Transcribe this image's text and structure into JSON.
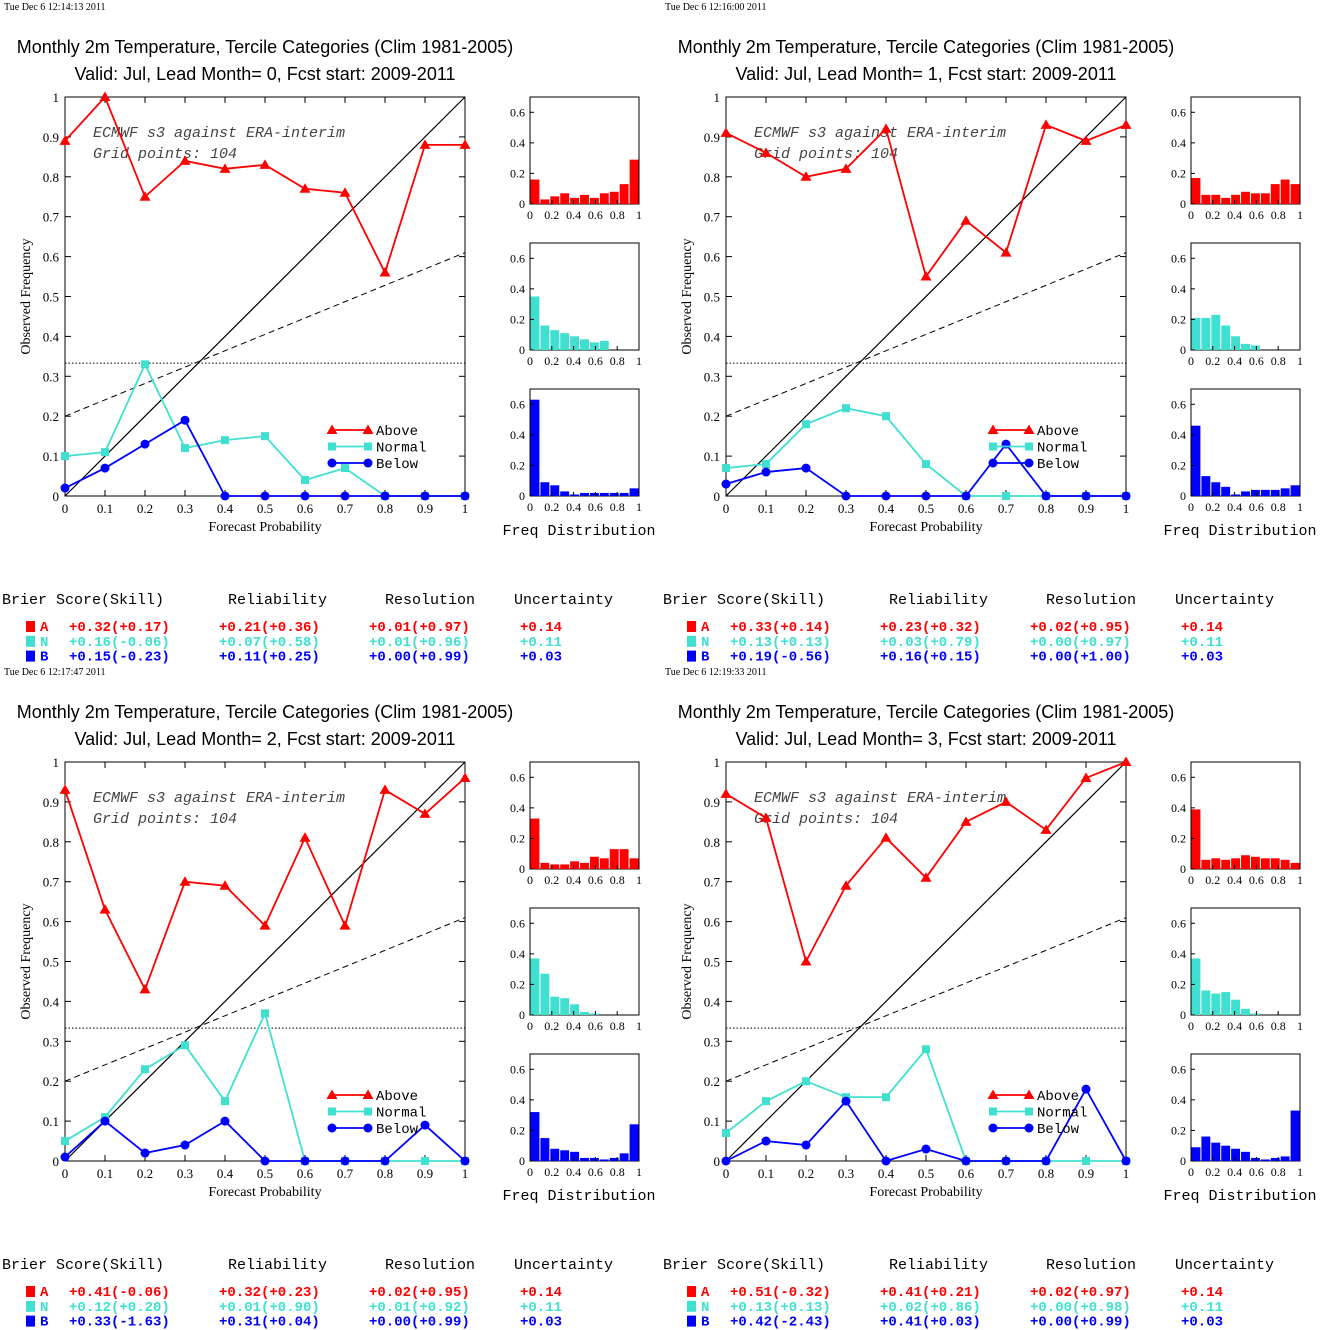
{
  "colors": {
    "above": "#ff0000",
    "normal": "#40e0d0",
    "below": "#0000ff",
    "axis": "#000000"
  },
  "score_headers": [
    "Brier Score(Skill)",
    "Reliability",
    "Resolution",
    "Uncertainty"
  ],
  "legend_labels": [
    "Above",
    "Normal",
    "Below"
  ],
  "legend_codes": [
    "A",
    "N",
    "B"
  ],
  "chart_data": [
    {
      "type": "line",
      "timestamp": "Tue Dec  6 12:14:13 2011",
      "title": "Monthly 2m Temperature, Tercile Categories (Clim 1981-2005)",
      "subtitle": "Valid: Jul, Lead Month= 0, Fcst start: 2009-2011",
      "annotation": [
        "ECMWF s3 against ERA-interim",
        "Grid points:  104"
      ],
      "xlabel": "Forecast Probability",
      "ylabel": "Observed Frequency",
      "hist_xlabel": "Freq Distribution",
      "xlim": [
        0,
        1
      ],
      "ylim": [
        0,
        1
      ],
      "x": [
        0,
        0.1,
        0.2,
        0.3,
        0.4,
        0.5,
        0.6,
        0.7,
        0.8,
        0.9,
        1.0
      ],
      "series": [
        {
          "name": "Above",
          "values": [
            0.89,
            1.0,
            0.75,
            0.84,
            0.82,
            0.83,
            0.77,
            0.76,
            0.56,
            0.88,
            0.88
          ]
        },
        {
          "name": "Normal",
          "values": [
            0.1,
            0.11,
            0.33,
            0.12,
            0.14,
            0.15,
            0.04,
            0.07,
            0,
            0,
            0
          ]
        },
        {
          "name": "Below",
          "values": [
            0.02,
            0.07,
            0.13,
            0.19,
            0,
            0,
            0,
            0,
            0,
            0,
            0
          ]
        }
      ],
      "histograms": [
        {
          "name": "Above",
          "values": [
            0.16,
            0.03,
            0.05,
            0.07,
            0.04,
            0.06,
            0.04,
            0.07,
            0.08,
            0.13,
            0.29
          ]
        },
        {
          "name": "Normal",
          "values": [
            0.35,
            0.16,
            0.13,
            0.11,
            0.09,
            0.07,
            0.05,
            0.06,
            0,
            0,
            0
          ]
        },
        {
          "name": "Below",
          "values": [
            0.63,
            0.09,
            0.07,
            0.03,
            0.01,
            0.02,
            0.02,
            0.02,
            0.02,
            0.02,
            0.05
          ]
        }
      ],
      "scores": [
        {
          "bs": "+0.32(+0.17)",
          "rel": "+0.21(+0.36)",
          "res": "+0.01(+0.97)",
          "unc": "+0.14"
        },
        {
          "bs": "+0.16(-0.06)",
          "rel": "+0.07(+0.58)",
          "res": "+0.01(+0.96)",
          "unc": "+0.11"
        },
        {
          "bs": "+0.15(-0.23)",
          "rel": "+0.11(+0.25)",
          "res": "+0.00(+0.99)",
          "unc": "+0.03"
        }
      ]
    },
    {
      "type": "line",
      "timestamp": "Tue Dec  6 12:16:00 2011",
      "title": "Monthly 2m Temperature, Tercile Categories (Clim 1981-2005)",
      "subtitle": "Valid: Jul, Lead Month= 1, Fcst start: 2009-2011",
      "annotation": [
        "ECMWF s3 against ERA-interim",
        "Grid points:  104"
      ],
      "xlabel": "Forecast Probability",
      "ylabel": "Observed Frequency",
      "hist_xlabel": "Freq Distribution",
      "xlim": [
        0,
        1
      ],
      "ylim": [
        0,
        1
      ],
      "x": [
        0,
        0.1,
        0.2,
        0.3,
        0.4,
        0.5,
        0.6,
        0.7,
        0.8,
        0.9,
        1.0
      ],
      "series": [
        {
          "name": "Above",
          "values": [
            0.91,
            0.86,
            0.8,
            0.82,
            0.92,
            0.55,
            0.69,
            0.61,
            0.93,
            0.89,
            0.93
          ]
        },
        {
          "name": "Normal",
          "values": [
            0.07,
            0.08,
            0.18,
            0.22,
            0.2,
            0.08,
            0,
            0,
            0,
            0,
            0
          ]
        },
        {
          "name": "Below",
          "values": [
            0.03,
            0.06,
            0.07,
            0,
            0,
            0,
            0,
            0.13,
            0,
            0,
            0
          ]
        }
      ],
      "histograms": [
        {
          "name": "Above",
          "values": [
            0.17,
            0.06,
            0.06,
            0.04,
            0.06,
            0.08,
            0.07,
            0.07,
            0.13,
            0.16,
            0.13
          ]
        },
        {
          "name": "Normal",
          "values": [
            0.21,
            0.21,
            0.23,
            0.16,
            0.09,
            0.04,
            0.03,
            0,
            0,
            0,
            0
          ]
        },
        {
          "name": "Below",
          "values": [
            0.46,
            0.13,
            0.09,
            0.06,
            0.01,
            0.03,
            0.04,
            0.04,
            0.04,
            0.05,
            0.07
          ]
        }
      ],
      "scores": [
        {
          "bs": "+0.33(+0.14)",
          "rel": "+0.23(+0.32)",
          "res": "+0.02(+0.95)",
          "unc": "+0.14"
        },
        {
          "bs": "+0.13(+0.13)",
          "rel": "+0.03(+0.79)",
          "res": "+0.00(+0.97)",
          "unc": "+0.11"
        },
        {
          "bs": "+0.19(-0.56)",
          "rel": "+0.16(+0.15)",
          "res": "+0.00(+1.00)",
          "unc": "+0.03"
        }
      ]
    },
    {
      "type": "line",
      "timestamp": "Tue Dec  6 12:17:47 2011",
      "title": "Monthly 2m Temperature, Tercile Categories (Clim 1981-2005)",
      "subtitle": "Valid: Jul, Lead Month= 2, Fcst start: 2009-2011",
      "annotation": [
        "ECMWF s3 against ERA-interim",
        "Grid points:  104"
      ],
      "xlabel": "Forecast Probability",
      "ylabel": "Observed Frequency",
      "hist_xlabel": "Freq Distribution",
      "xlim": [
        0,
        1
      ],
      "ylim": [
        0,
        1
      ],
      "x": [
        0,
        0.1,
        0.2,
        0.3,
        0.4,
        0.5,
        0.6,
        0.7,
        0.8,
        0.9,
        1.0
      ],
      "series": [
        {
          "name": "Above",
          "values": [
            0.93,
            0.63,
            0.43,
            0.7,
            0.69,
            0.59,
            0.81,
            0.59,
            0.93,
            0.87,
            0.96
          ]
        },
        {
          "name": "Normal",
          "values": [
            0.05,
            0.11,
            0.23,
            0.29,
            0.15,
            0.37,
            0,
            0,
            0,
            0,
            0
          ]
        },
        {
          "name": "Below",
          "values": [
            0.01,
            0.1,
            0.02,
            0.04,
            0.1,
            0,
            0,
            0,
            0,
            0.09,
            0
          ]
        }
      ],
      "histograms": [
        {
          "name": "Above",
          "values": [
            0.33,
            0.04,
            0.03,
            0.03,
            0.05,
            0.04,
            0.08,
            0.07,
            0.13,
            0.13,
            0.07
          ]
        },
        {
          "name": "Normal",
          "values": [
            0.37,
            0.27,
            0.12,
            0.11,
            0.07,
            0.02,
            0.01,
            0,
            0,
            0,
            0
          ]
        },
        {
          "name": "Below",
          "values": [
            0.32,
            0.15,
            0.08,
            0.07,
            0.06,
            0.02,
            0.02,
            0.01,
            0.02,
            0.05,
            0.24
          ]
        }
      ],
      "scores": [
        {
          "bs": "+0.41(-0.06)",
          "rel": "+0.32(+0.23)",
          "res": "+0.02(+0.95)",
          "unc": "+0.14"
        },
        {
          "bs": "+0.12(+0.20)",
          "rel": "+0.01(+0.90)",
          "res": "+0.01(+0.92)",
          "unc": "+0.11"
        },
        {
          "bs": "+0.33(-1.63)",
          "rel": "+0.31(+0.04)",
          "res": "+0.00(+0.99)",
          "unc": "+0.03"
        }
      ]
    },
    {
      "type": "line",
      "timestamp": "Tue Dec  6 12:19:33 2011",
      "title": "Monthly 2m Temperature, Tercile Categories (Clim 1981-2005)",
      "subtitle": "Valid: Jul, Lead Month= 3, Fcst start: 2009-2011",
      "annotation": [
        "ECMWF s3 against ERA-interim",
        "Grid points:  104"
      ],
      "xlabel": "Forecast Probability",
      "ylabel": "Observed Frequency",
      "hist_xlabel": "Freq Distribution",
      "xlim": [
        0,
        1
      ],
      "ylim": [
        0,
        1
      ],
      "x": [
        0,
        0.1,
        0.2,
        0.3,
        0.4,
        0.5,
        0.6,
        0.7,
        0.8,
        0.9,
        1.0
      ],
      "series": [
        {
          "name": "Above",
          "values": [
            0.92,
            0.86,
            0.5,
            0.69,
            0.81,
            0.71,
            0.85,
            0.9,
            0.83,
            0.96,
            1.0
          ]
        },
        {
          "name": "Normal",
          "values": [
            0.07,
            0.15,
            0.2,
            0.16,
            0.16,
            0.28,
            0,
            0,
            0,
            0,
            0
          ]
        },
        {
          "name": "Below",
          "values": [
            0,
            0.05,
            0.04,
            0.15,
            0,
            0.03,
            0,
            0,
            0,
            0.18,
            0
          ]
        }
      ],
      "histograms": [
        {
          "name": "Above",
          "values": [
            0.39,
            0.06,
            0.07,
            0.06,
            0.07,
            0.09,
            0.08,
            0.07,
            0.07,
            0.06,
            0.04
          ]
        },
        {
          "name": "Normal",
          "values": [
            0.37,
            0.16,
            0.14,
            0.15,
            0.1,
            0.04,
            0.01,
            0,
            0,
            0,
            0
          ]
        },
        {
          "name": "Below",
          "values": [
            0.09,
            0.16,
            0.12,
            0.1,
            0.08,
            0.06,
            0.02,
            0.01,
            0.02,
            0.03,
            0.33
          ]
        }
      ],
      "scores": [
        {
          "bs": "+0.51(-0.32)",
          "rel": "+0.41(+0.21)",
          "res": "+0.02(+0.97)",
          "unc": "+0.14"
        },
        {
          "bs": "+0.13(+0.13)",
          "rel": "+0.02(+0.86)",
          "res": "+0.00(+0.98)",
          "unc": "+0.11"
        },
        {
          "bs": "+0.42(-2.43)",
          "rel": "+0.41(+0.03)",
          "res": "+0.00(+0.99)",
          "unc": "+0.03"
        }
      ]
    }
  ]
}
